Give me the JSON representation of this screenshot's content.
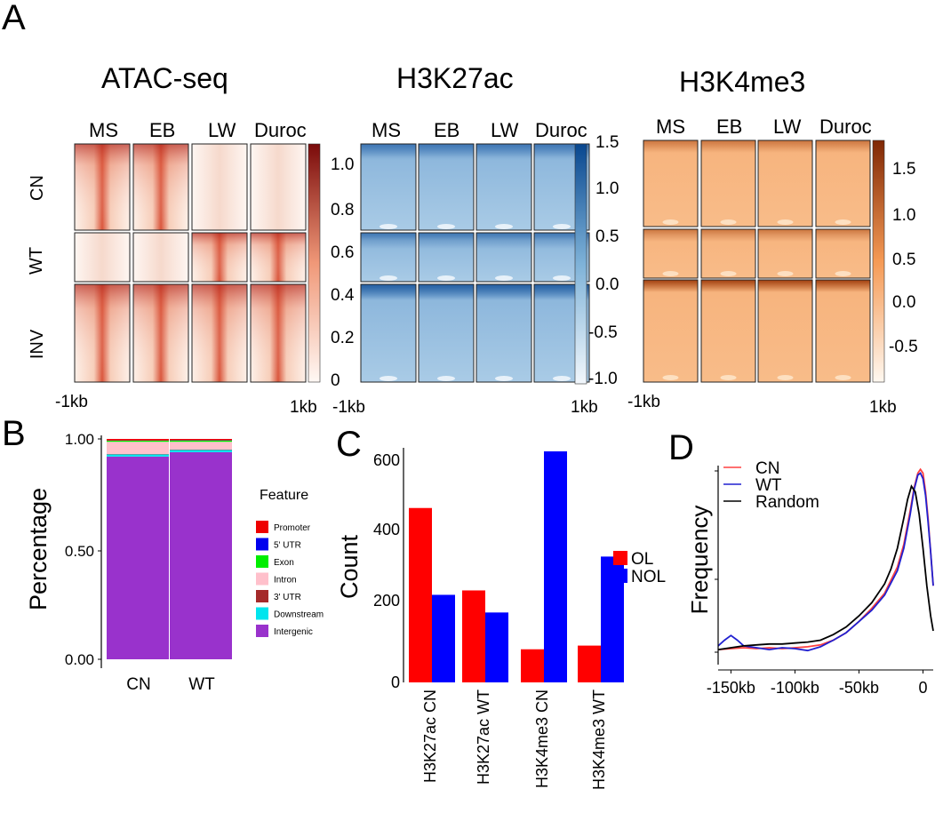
{
  "panels": {
    "a": "A",
    "b": "B",
    "c": "C",
    "d": "D"
  },
  "heatmaps": {
    "columns": [
      "MS",
      "EB",
      "LW",
      "Duroc"
    ],
    "rows": [
      "CN",
      "WT",
      "INV"
    ],
    "x_start": "-1kb",
    "x_end": "1kb",
    "atac": {
      "title": "ATAC-seq",
      "colorbar_ticks": [
        "1.0",
        "0.8",
        "0.6",
        "0.4",
        "0.2",
        "0"
      ],
      "colors": {
        "low": "#fdf3ee",
        "high": "#7a0a0a"
      }
    },
    "h3k27ac": {
      "title": "H3K27ac",
      "colorbar_ticks": [
        "1.5",
        "1.0",
        "0.5",
        "0.0",
        "-0.5",
        "-1.0"
      ],
      "colors": {
        "low": "#eaf2fa",
        "high": "#08478f"
      }
    },
    "h3k4me3": {
      "title": "H3K4me3",
      "colorbar_ticks": [
        "1.5",
        "1.0",
        "0.5",
        "0.0",
        "-0.5"
      ],
      "colors": {
        "low": "#fff5ea",
        "high": "#8c2d04"
      }
    }
  },
  "chart_data": [
    {
      "id": "B",
      "type": "bar",
      "stacked": true,
      "ylabel": "Percentage",
      "yticks": [
        "1.00",
        "0.50",
        "0.00"
      ],
      "categories": [
        "CN",
        "WT"
      ],
      "legend_title": "Feature",
      "series": [
        {
          "name": "Intergenic",
          "color": "#9932cc",
          "values": [
            0.92,
            0.94
          ]
        },
        {
          "name": "Downstream",
          "color": "#00e5ee",
          "values": [
            0.01,
            0.01
          ]
        },
        {
          "name": "3' UTR",
          "color": "#a52a2a",
          "values": [
            0.002,
            0.002
          ]
        },
        {
          "name": "Intron",
          "color": "#ffc0cb",
          "values": [
            0.055,
            0.035
          ]
        },
        {
          "name": "Exon",
          "color": "#00ee00",
          "values": [
            0.005,
            0.006
          ]
        },
        {
          "name": "5' UTR",
          "color": "#0000ee",
          "values": [
            0.001,
            0.001
          ]
        },
        {
          "name": "Promoter",
          "color": "#ee0000",
          "values": [
            0.007,
            0.006
          ]
        }
      ],
      "legend_order": [
        "Promoter",
        "5' UTR",
        "Exon",
        "Intron",
        "3' UTR",
        "Downstream",
        "Intergenic"
      ]
    },
    {
      "id": "C",
      "type": "bar",
      "ylabel": "Count",
      "yticks": [
        "600",
        "400",
        "200",
        "0"
      ],
      "ylim": [
        0,
        640
      ],
      "categories": [
        "H3K27ac CN",
        "H3K27ac WT",
        "H3K4me3 CN",
        "H3K4me3 WT"
      ],
      "series": [
        {
          "name": "OL",
          "color": "#ff0000",
          "values": [
            474,
            250,
            90,
            100
          ]
        },
        {
          "name": "NOL",
          "color": "#0000ff",
          "values": [
            238,
            190,
            628,
            342
          ]
        }
      ]
    },
    {
      "id": "D",
      "type": "line",
      "ylabel": "Frequency",
      "xticks": [
        "-150kb",
        "-100kb",
        "-50kb",
        "0"
      ],
      "xlim": [
        -160,
        8
      ],
      "series": [
        {
          "name": "CN",
          "color": "#ff4040",
          "x": [
            -160,
            -150,
            -140,
            -130,
            -120,
            -110,
            -100,
            -90,
            -80,
            -70,
            -60,
            -50,
            -40,
            -30,
            -20,
            -15,
            -10,
            -7,
            -4,
            -2,
            0,
            2,
            4,
            6,
            8
          ],
          "y": [
            0.08,
            0.085,
            0.09,
            0.085,
            0.09,
            0.085,
            0.09,
            0.095,
            0.105,
            0.13,
            0.17,
            0.23,
            0.3,
            0.38,
            0.52,
            0.64,
            0.82,
            0.94,
            1.02,
            1.04,
            1.02,
            0.92,
            0.78,
            0.6,
            0.42
          ]
        },
        {
          "name": "WT",
          "color": "#2020d0",
          "x": [
            -160,
            -155,
            -150,
            -145,
            -140,
            -130,
            -120,
            -110,
            -100,
            -90,
            -80,
            -70,
            -60,
            -50,
            -40,
            -30,
            -20,
            -15,
            -10,
            -7,
            -4,
            -2,
            0,
            2,
            4,
            6,
            8
          ],
          "y": [
            0.1,
            0.13,
            0.155,
            0.13,
            0.1,
            0.09,
            0.08,
            0.09,
            0.085,
            0.075,
            0.095,
            0.13,
            0.17,
            0.23,
            0.29,
            0.37,
            0.5,
            0.62,
            0.8,
            0.93,
            1.01,
            1.02,
            0.99,
            0.9,
            0.76,
            0.6,
            0.42
          ]
        },
        {
          "name": "Random",
          "color": "#000000",
          "x": [
            -160,
            -150,
            -140,
            -130,
            -120,
            -110,
            -100,
            -90,
            -80,
            -70,
            -60,
            -50,
            -40,
            -30,
            -25,
            -20,
            -15,
            -12,
            -9,
            -6,
            -3,
            0,
            3,
            6,
            8
          ],
          "y": [
            0.08,
            0.09,
            0.1,
            0.105,
            0.11,
            0.11,
            0.115,
            0.12,
            0.13,
            0.16,
            0.2,
            0.26,
            0.33,
            0.43,
            0.51,
            0.62,
            0.78,
            0.88,
            0.95,
            0.92,
            0.8,
            0.62,
            0.42,
            0.26,
            0.18
          ]
        }
      ]
    }
  ]
}
